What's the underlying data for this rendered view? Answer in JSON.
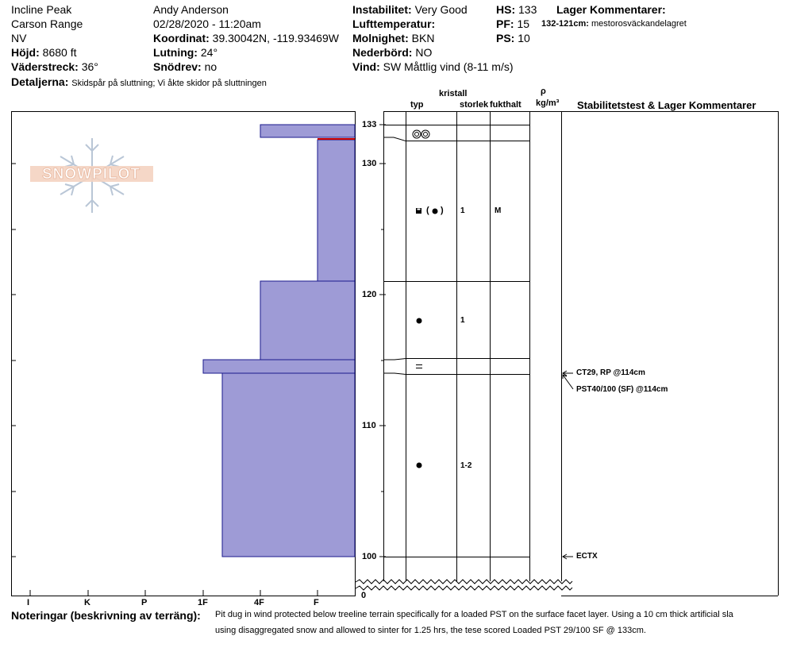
{
  "header": {
    "location": "Incline Peak",
    "range": "Carson Range",
    "state": "NV",
    "hojd_label": "Höjd:",
    "hojd_value": "8680 ft",
    "vaderstreck_label": "Väderstreck:",
    "vaderstreck_value": "36°",
    "detaljer_label": "Detaljerna:",
    "detaljer_value": "Skidspår på sluttning;  Vi åkte skidor på sluttningen",
    "observer": "Andy Anderson",
    "datetime": "02/28/2020 - 11:20am",
    "koordinat_label": "Koordinat:",
    "koordinat_value": "39.30042N, -119.93469W",
    "lutning_label": "Lutning:",
    "lutning_value": "24°",
    "snodrev_label": "Snödrev:",
    "snodrev_value": "no",
    "instabilitet_label": "Instabilitet:",
    "instabilitet_value": "Very Good",
    "lufttemp_label": "Lufttemperatur:",
    "molnighet_label": "Molnighet:",
    "molnighet_value": "BKN",
    "nederbord_label": "Nederbörd:",
    "nederbord_value": "NO",
    "vind_label": "Vind:",
    "vind_value": "SW  Måttlig vind (8-11 m/s)",
    "hs_label": "HS:",
    "hs_value": "133",
    "pf_label": "PF:",
    "pf_value": "15",
    "ps_label": "PS:",
    "ps_value": "10",
    "lager_title": "Lager Kommentarer:",
    "lager_range": "132-121cm:",
    "lager_text": "mestorosväckandelagret"
  },
  "logo": {
    "text": "SNOWPILOT"
  },
  "columns": {
    "kristall": "kristall",
    "typ": "typ",
    "storlek": "storlek",
    "fukthalt": "fukthalt",
    "rho": "ρ",
    "density_unit": "kg/m³",
    "stability": "Stabilitetstest & Lager Kommentarer"
  },
  "hardness_axis": [
    "I",
    "K",
    "P",
    "1F",
    "4F",
    "F"
  ],
  "depth_ticks": [
    "133",
    "130",
    "120",
    "110",
    "100",
    "0"
  ],
  "chart_data": {
    "type": "snow_profile",
    "hardness_categories": [
      "I",
      "K",
      "P",
      "1F",
      "4F",
      "F"
    ],
    "layers": [
      {
        "top": 133,
        "bottom": 132,
        "hardness": "4F-"
      },
      {
        "top": 132,
        "bottom": 121,
        "hardness": "F+",
        "grain": "faceted/rounding",
        "size": "1",
        "moisture": "M"
      },
      {
        "top": 121,
        "bottom": 115,
        "hardness": "4F",
        "grain": "faceted",
        "size": "1"
      },
      {
        "top": 115,
        "bottom": 114,
        "hardness": "1F",
        "grain": "surface hoar"
      },
      {
        "top": 114,
        "bottom": 100,
        "hardness": "1F-",
        "grain": "faceted",
        "size": "1-2"
      }
    ],
    "grain_symbols": [
      "◎◎",
      "(●)",
      "●",
      "=",
      "●"
    ],
    "sizes": [
      "1",
      "1",
      "1-2"
    ],
    "moisture": [
      "M"
    ]
  },
  "tests": [
    {
      "text": "CT29, RP @114cm"
    },
    {
      "text": "PST40/100 (SF) @114cm"
    },
    {
      "text": "ECTX"
    }
  ],
  "notes": {
    "label": "Noteringar (beskrivning av terräng):",
    "line1": "Pit dug in wind protected below treeline terrain specifically for a loaded PST on the surface facet layer. Using a 10 cm thick artificial sla",
    "line2": "using disaggregated snow and allowed to sinter for 1.25 hrs, the tese scored Loaded PST 29/100 SF @ 133cm."
  },
  "colors": {
    "layer_fill": "#9e9bd6",
    "layer_stroke": "#1a1a8c",
    "weak_line": "#cc0000"
  }
}
